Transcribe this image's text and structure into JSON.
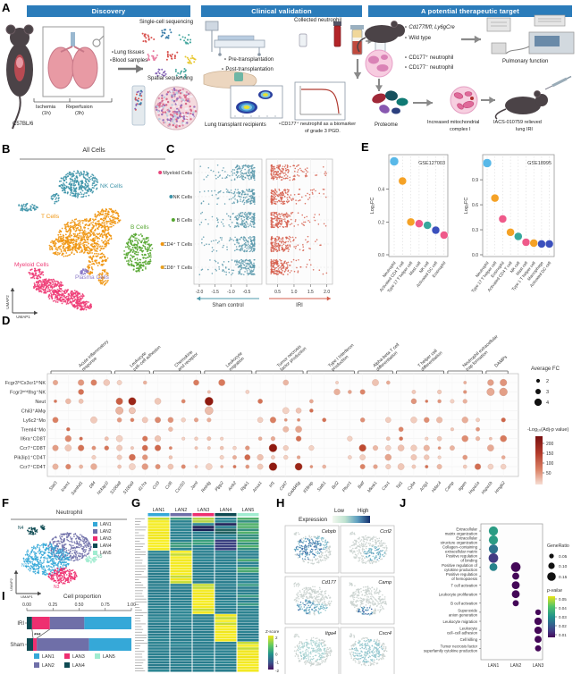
{
  "panel_a": {
    "label": "A",
    "banners": [
      "Discovery",
      "Clinical validation",
      "A potential therapeutic target"
    ],
    "mouse_strain": "C57BL/6",
    "timeline": {
      "ischemia": "Ischemia",
      "ischemia_time": "(1h)",
      "reperfusion": "Reperfusion",
      "reperfusion_time": "(3h)"
    },
    "samples": [
      "∘Lung tissues",
      "∘Blood samples"
    ],
    "single_cell": "Single-cell sequencing",
    "spatial": "Spatial sequencing",
    "collected": "Collected neutrophil",
    "pre": "∘ Pre-transplantation",
    "post": "∘ Post-transplantation",
    "recipients": "Lung transplant recipients",
    "biomarker_line1": "∘CD177⁺ neutrophil as a biomarker",
    "biomarker_line2": "of grade 3 PGD.",
    "genotype": "∘ Cd177fl/fl; Ly6gCre",
    "wild_type": "∘ Wild type",
    "cd177_pos": "∘ CD177⁺ neutrophil",
    "cd177_neg": "∘ CD177⁻ neutrophil",
    "pulmonary": "Pulmonary function",
    "proteome": "Proteome",
    "mito_line1": "Increased mitochondrial",
    "mito_line2": "complex I",
    "iacs_line1": "IACS-010759 relieved",
    "iacs_line2": "lung IRI"
  },
  "panel_b": {
    "label": "B",
    "title": "All Cells",
    "axes": [
      "UMAP1",
      "UMAP2"
    ],
    "clusters": [
      {
        "name": "NK Cells",
        "color": "#3d93a8"
      },
      {
        "name": "T Cells",
        "color": "#f0950f"
      },
      {
        "name": "B Cells",
        "color": "#55a630"
      },
      {
        "name": "Myeloid Cells",
        "color": "#ee3d77"
      },
      {
        "name": "Plasma Cells",
        "color": "#8d7cc8"
      }
    ]
  },
  "panel_c": {
    "label": "C"
  },
  "panel_d": {
    "label": "D"
  },
  "panel_e": {
    "label": "E"
  },
  "panel_f": {
    "label": "F",
    "title": "Neutrophil",
    "axes": [
      "UMAP1",
      "UMAP2"
    ],
    "legend": [
      {
        "name": "LAN1",
        "color": "#35a8d8"
      },
      {
        "name": "LAN2",
        "color": "#6f6fa8"
      },
      {
        "name": "LAN3",
        "color": "#ee2f70"
      },
      {
        "name": "LAN4",
        "color": "#0e4a52"
      },
      {
        "name": "LAN5",
        "color": "#a0ecd0"
      }
    ],
    "cluster_tags": [
      "N1",
      "N2",
      "N3",
      "N4",
      "N5"
    ]
  },
  "panel_g": {
    "label": "G"
  },
  "panel_h": {
    "label": "H",
    "expression": "Expression",
    "low": "Low",
    "high": "High",
    "genes": [
      "Cebpb",
      "Ccrl2",
      "Cd177",
      "Camp",
      "Itga4",
      "Cxcr4"
    ]
  },
  "panel_i": {
    "label": "I"
  },
  "panel_j": {
    "label": "J"
  },
  "chart_data": [
    {
      "id": "c_strip",
      "type": "scatter",
      "rows": [
        "Myeloid Cells",
        "NK Cells",
        "B Cells",
        "CD4⁺ T Cells",
        "CD8⁺ T Cells"
      ],
      "row_dot_colors": [
        "#e8457b",
        "#3d93a8",
        "#55a630",
        "#f0950f",
        "#e8a01f"
      ],
      "left": {
        "axis_label": "Sham control",
        "ticks": [
          "-2.0",
          "-1.5",
          "-1.0",
          "-0.5"
        ],
        "tick_vals": [
          -2,
          -1.5,
          -1,
          -0.5
        ],
        "color": "#5b99ab",
        "arrow_color": "#4d9aab"
      },
      "right": {
        "axis_label": "IRI",
        "ticks": [
          "0.5",
          "1.0",
          "1.5",
          "2.0"
        ],
        "tick_vals": [
          0.5,
          1,
          1.5,
          2
        ],
        "color": "#d65f4d",
        "arrow_color": "#d65f4d"
      }
    },
    {
      "id": "d_dotplot",
      "type": "dotplot",
      "rows": [
        "Fcgr3ʰⁱCx3cr1ʰⁱNK",
        "Fcgr3ᵐⁱᵈIfng⁺NK",
        "Neut",
        "Chil3⁺AMφ",
        "Ly6c2⁺Mo",
        "Treml4⁺Mo",
        "Il6ra⁺CD8T",
        "Ccr7⁺CD8T",
        "Pik3ip1⁺CD4T",
        "Ccr7⁺CD4T"
      ],
      "genes": [
        "Stat3",
        "Icam1",
        "Samhd1",
        "Dll4",
        "Nckap1l",
        "S100a8",
        "S100a9",
        "Il17ra",
        "Ccl3",
        "Ccl6",
        "Cxcl10",
        "Jaml",
        "Retnlg",
        "Plpp2",
        "Arrb2",
        "Ripk1",
        "Anxa1",
        "Irf1",
        "Cd47",
        "Gadd45g",
        "Il18rap",
        "Satb1",
        "Bcl2",
        "Plscr1",
        "Batf",
        "Mknk1",
        "Cav1",
        "Tal1",
        "Cyba",
        "Actg1",
        "Hdac4",
        "Camp",
        "Itgam",
        "Hspa1a",
        "Hspa1b",
        "Hmgb2"
      ],
      "groups": [
        {
          "label": "Acute inflammatory response",
          "start": 0,
          "end": 4
        },
        {
          "label": "Leukocyte cell–cell adhesion",
          "start": 5,
          "end": 7
        },
        {
          "label": "Chemokine and receptor",
          "start": 8,
          "end": 11
        },
        {
          "label": "Leukocyte migration",
          "start": 12,
          "end": 15
        },
        {
          "label": "Tumor necrosis factor production",
          "start": 16,
          "end": 19
        },
        {
          "label": "Type I Interferon production",
          "start": 20,
          "end": 23
        },
        {
          "label": "Alpha-beta T cell differentiation",
          "start": 24,
          "end": 26
        },
        {
          "label": "T helper cell differentiation",
          "start": 27,
          "end": 30
        },
        {
          "label": "Neutrophil extracellular trap formation",
          "start": 31,
          "end": 33
        },
        {
          "label": "DAMPs",
          "start": 34,
          "end": 35
        }
      ],
      "row_density": [
        0.45,
        0.32,
        0.5,
        0.1,
        0.42,
        0.18,
        0.62,
        0.82,
        0.55,
        0.85
      ],
      "highlights": [
        {
          "r": 2,
          "c": 5,
          "i": 0.7,
          "rad": 3.8
        },
        {
          "r": 2,
          "c": 6,
          "i": 0.95,
          "rad": 4.3
        },
        {
          "r": 2,
          "c": 12,
          "i": 1,
          "rad": 4.7
        },
        {
          "r": 3,
          "c": 5,
          "i": 0.3,
          "rad": 4.2
        },
        {
          "r": 3,
          "c": 6,
          "i": 0.2,
          "rad": 3.6
        },
        {
          "r": 3,
          "c": 12,
          "i": 0.25,
          "rad": 4.5
        },
        {
          "r": 7,
          "c": 17,
          "i": 1,
          "rad": 4.5
        },
        {
          "r": 9,
          "c": 17,
          "i": 1,
          "rad": 4.5
        },
        {
          "r": 9,
          "c": 19,
          "i": 0.95,
          "rad": 4.1
        },
        {
          "r": 7,
          "c": 24,
          "i": 0.8,
          "rad": 3.9
        },
        {
          "r": 0,
          "c": 34,
          "i": 0.4,
          "rad": 3.4
        },
        {
          "r": 0,
          "c": 35,
          "i": 0.45,
          "rad": 3.8
        },
        {
          "r": 1,
          "c": 34,
          "i": 0.35,
          "rad": 4.2
        },
        {
          "r": 1,
          "c": 35,
          "i": 0.4,
          "rad": 4.4
        },
        {
          "r": 4,
          "c": 8,
          "i": 0.5,
          "rad": 3.2
        },
        {
          "r": 2,
          "c": 28,
          "i": 0.45,
          "rad": 3.0
        }
      ],
      "legend": {
        "size_title": "Average FC",
        "sizes": [
          "2",
          "3",
          "4"
        ],
        "color_title": "-Log₁₀(Adj-p value)",
        "color_ticks": [
          "200",
          "150",
          "100",
          "50"
        ]
      }
    },
    {
      "id": "gse127003",
      "type": "scatter",
      "title": "GSE127003",
      "ylabel": "Log₂FC",
      "yticks": [
        "0.0",
        "0.2",
        "0.4"
      ],
      "ytick_vals": [
        0,
        0.2,
        0.4
      ],
      "ylim": [
        0,
        0.6
      ],
      "categories": [
        "Neutrophil",
        "Activated CD4 T cell",
        "Type 17 T helper cell",
        "Mast cell",
        "NK cell",
        "Activated DC cell",
        "Eosinophil"
      ],
      "values": [
        0.57,
        0.45,
        0.2,
        0.19,
        0.18,
        0.15,
        0.12
      ],
      "colors": [
        "#58b8e8",
        "#f5a226",
        "#f5a226",
        "#ef5a8a",
        "#38a89d",
        "#3b50bd",
        "#ef5a8a"
      ]
    },
    {
      "id": "gse18995",
      "type": "scatter",
      "title": "GSE18995",
      "ylabel": "Log₂FC",
      "yticks": [
        "0.0",
        "0.3",
        "0.6",
        "0.9"
      ],
      "ytick_vals": [
        0,
        0.3,
        0.6,
        0.9
      ],
      "ylim": [
        0,
        1.18
      ],
      "categories": [
        "Neutrophil",
        "Type 17 T helper cell",
        "Eosinophil",
        "Activated CD4 T cell",
        "NK cell",
        "Mast cell",
        "Type 1 T helper cell",
        "Macrophage",
        "Activated DC cell"
      ],
      "values": [
        1.1,
        0.68,
        0.43,
        0.27,
        0.22,
        0.15,
        0.14,
        0.13,
        0.13
      ],
      "colors": [
        "#58b8e8",
        "#f5a226",
        "#ef5a8a",
        "#f5a226",
        "#38a89d",
        "#ef5a8a",
        "#f5a226",
        "#3b50bd",
        "#3b50bd"
      ]
    },
    {
      "id": "g_heatmap",
      "type": "heatmap",
      "columns": [
        "LAN1",
        "LAN2",
        "LAN3",
        "LAN4",
        "LAN5"
      ],
      "column_colors": [
        "#35a8d8",
        "#6f6fa8",
        "#ee2f70",
        "#0e4a52",
        "#a0ecd0"
      ],
      "n_rows": 56,
      "blocks": [
        [
          0,
          11
        ],
        [
          12,
          23
        ],
        [
          24,
          34
        ],
        [
          35,
          44
        ],
        [
          45,
          55
        ]
      ],
      "legend": {
        "label": "Z-score",
        "ticks": [
          "2",
          "1",
          "0",
          "-1",
          "-2"
        ]
      }
    },
    {
      "id": "i_bars",
      "type": "bar",
      "title": "Cell proportion",
      "ticks": [
        "0.00",
        "0.25",
        "0.50",
        "0.75",
        "1.00"
      ],
      "tick_vals": [
        0,
        0.25,
        0.5,
        0.75,
        1
      ],
      "rows": [
        "IRI",
        "Sham"
      ],
      "segments_order": [
        "LAN4",
        "LAN3",
        "LAN2",
        "LAN1"
      ],
      "values": {
        "IRI": [
          0.05,
          0.17,
          0.33,
          0.45
        ],
        "Sham": [
          0.06,
          0.035,
          0.5,
          0.405
        ]
      },
      "colors": {
        "LAN1": "#35a8d8",
        "LAN2": "#6f6fa8",
        "LAN3": "#ee2f70",
        "LAN4": "#0e4a52",
        "LAN5": "#a0ecd0"
      },
      "significance": "***",
      "legend": [
        "LAN1",
        "LAN2",
        "LAN3",
        "LAN4",
        "LAN5"
      ]
    },
    {
      "id": "j_go",
      "type": "scatter",
      "columns": [
        "LAN1",
        "LAN2",
        "LAN3"
      ],
      "terms": [
        "Extracellular matrix organization",
        "Extracellular structure organization",
        "Collagen−containing extracellular matrix",
        "Positive regulation of binding",
        "Positive regulation of cytokine production",
        "Positive regulation of hemopoiesis",
        "T cell activation",
        "Leukocyte proliferation",
        "B cell activation",
        "Superoxide anion generation",
        "Leukocyte migration",
        "Leukocyte cell−cell adhesion",
        "Cell killing",
        "Tumor necrosis factor superfamily cytokine production"
      ],
      "dots": [
        [
          0,
          0,
          0.13,
          0.03
        ],
        [
          1,
          0,
          0.13,
          0.03
        ],
        [
          2,
          0,
          0.13,
          0.022
        ],
        [
          3,
          0,
          0.14,
          0.012
        ],
        [
          4,
          0,
          0.1,
          0.025
        ],
        [
          4,
          1,
          0.14,
          0.005
        ],
        [
          5,
          1,
          0.08,
          0.005
        ],
        [
          6,
          1,
          0.1,
          0.005
        ],
        [
          7,
          1,
          0.1,
          0.005
        ],
        [
          8,
          1,
          0.06,
          0.005
        ],
        [
          9,
          2,
          0.05,
          0.005
        ],
        [
          10,
          2,
          0.09,
          0.005
        ],
        [
          11,
          2,
          0.09,
          0.005
        ],
        [
          12,
          2,
          0.08,
          0.005
        ],
        [
          13,
          2,
          0.06,
          0.005
        ]
      ],
      "legend": {
        "size_title": "GeneRatio",
        "sizes": [
          "0.05",
          "0.10",
          "0.15"
        ],
        "p_title": "p-value",
        "p_ticks": [
          "0.05",
          "0.04",
          "0.03",
          "0.02",
          "0.01"
        ]
      }
    }
  ]
}
